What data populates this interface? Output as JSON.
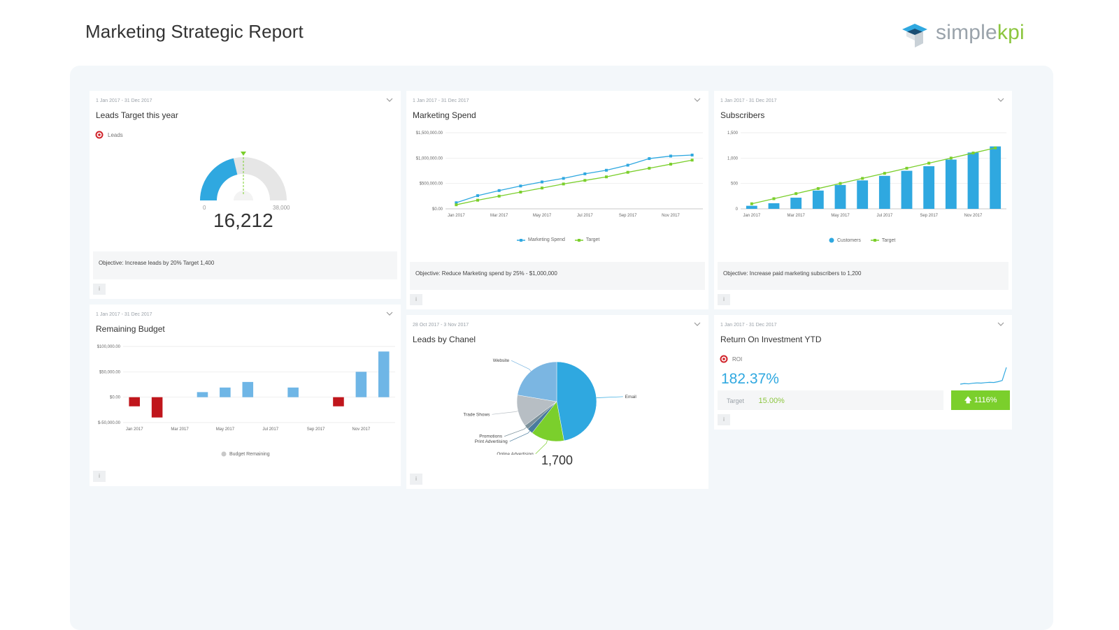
{
  "page": {
    "title": "Marketing Strategic Report"
  },
  "logo": {
    "text_simple": "simple",
    "text_kpi": "kpi"
  },
  "cards": {
    "leads": {
      "date": "1 Jan 2017 - 31 Dec 2017",
      "title": "Leads Target this year",
      "legend": "Leads",
      "gauge_min": "0",
      "gauge_max": "38,000",
      "value": "16,212",
      "objective": "Objective:  Increase leads by 20%  Target 1,400",
      "info": "i"
    },
    "spend": {
      "date": "1 Jan 2017 - 31 Dec 2017",
      "title": "Marketing Spend",
      "objective": "Objective: Reduce Marketing spend by 25% - $1,000,000",
      "legend": [
        "Marketing Spend",
        "Target"
      ],
      "info": "i"
    },
    "subscribers": {
      "date": "1 Jan 2017 - 31 Dec 2017",
      "title": "Subscribers",
      "objective": "Objective: Increase paid marketing subscribers to 1,200",
      "legend": [
        "Customers",
        "Target"
      ],
      "info": "i"
    },
    "budget": {
      "date": "1 Jan 2017 - 31 Dec 2017",
      "title": "Remaining Budget",
      "legend": "Budget Remaining",
      "info": "i"
    },
    "channel": {
      "date": "28 Oct 2017 - 3 Nov 2017",
      "title": "Leads by Chanel",
      "total": "1,700",
      "info": "i"
    },
    "roi": {
      "date": "1 Jan 2017 - 31 Dec 2017",
      "title": "Return On Investment YTD",
      "legend": "ROI",
      "value": "182.37%",
      "target_label": "Target",
      "target_value": "15.00%",
      "change": "1116%",
      "info": "i"
    }
  },
  "colors": {
    "blue": "#2fa8e0",
    "green": "#7bcf2c",
    "red": "#c0161c",
    "light_blue": "#6fb6e6"
  },
  "chart_data": [
    {
      "id": "leads-gauge",
      "type": "gauge",
      "value": 16212,
      "min": 0,
      "max": 38000,
      "target": 19000
    },
    {
      "id": "marketing-spend",
      "type": "line",
      "title": "Marketing Spend",
      "x": [
        "Jan 2017",
        "Feb 2017",
        "Mar 2017",
        "Apr 2017",
        "May 2017",
        "Jun 2017",
        "Jul 2017",
        "Aug 2017",
        "Sep 2017",
        "Oct 2017",
        "Nov 2017",
        "Dec 2017"
      ],
      "x_tick_labels": [
        "Jan 2017",
        "Mar 2017",
        "May 2017",
        "Jul 2017",
        "Sep 2017",
        "Nov 2017"
      ],
      "y_tick_labels": [
        "$0.00",
        "$500,000.00",
        "$1,000,000.00",
        "$1,500,000.00"
      ],
      "ylim": [
        0,
        1500000
      ],
      "series": [
        {
          "name": "Marketing Spend",
          "color": "#2fa8e0",
          "values": [
            120000,
            260000,
            360000,
            450000,
            530000,
            600000,
            690000,
            760000,
            860000,
            990000,
            1040000,
            1060000
          ]
        },
        {
          "name": "Target",
          "color": "#7bcf2c",
          "values": [
            80000,
            170000,
            250000,
            330000,
            410000,
            490000,
            560000,
            630000,
            720000,
            800000,
            880000,
            960000
          ]
        }
      ],
      "grid": true,
      "legend": "bottom"
    },
    {
      "id": "subscribers",
      "type": "bar",
      "title": "Subscribers",
      "x": [
        "Jan 2017",
        "Feb 2017",
        "Mar 2017",
        "Apr 2017",
        "May 2017",
        "Jun 2017",
        "Jul 2017",
        "Aug 2017",
        "Sep 2017",
        "Oct 2017",
        "Nov 2017",
        "Dec 2017"
      ],
      "x_tick_labels": [
        "Jan 2017",
        "Mar 2017",
        "May 2017",
        "Jul 2017",
        "Sep 2017",
        "Nov 2017"
      ],
      "y_tick_labels": [
        "0",
        "500",
        "1,000",
        "1,500"
      ],
      "ylim": [
        0,
        1500
      ],
      "series": [
        {
          "name": "Customers",
          "type": "bar",
          "color": "#2fa8e0",
          "values": [
            60,
            110,
            220,
            360,
            470,
            560,
            650,
            750,
            840,
            970,
            1110,
            1230
          ]
        },
        {
          "name": "Target",
          "type": "line",
          "color": "#7bcf2c",
          "values": [
            100,
            200,
            300,
            400,
            500,
            600,
            700,
            800,
            900,
            1000,
            1100,
            1200
          ]
        }
      ],
      "grid": true,
      "legend": "bottom"
    },
    {
      "id": "remaining-budget",
      "type": "bar",
      "title": "Remaining Budget",
      "x": [
        "Jan 2017",
        "Feb 2017",
        "Mar 2017",
        "Apr 2017",
        "May 2017",
        "Jun 2017",
        "Jul 2017",
        "Aug 2017",
        "Sep 2017",
        "Oct 2017",
        "Nov 2017",
        "Dec 2017"
      ],
      "x_tick_labels": [
        "Jan 2017",
        "Mar 2017",
        "May 2017",
        "Jul 2017",
        "Sep 2017",
        "Nov 2017"
      ],
      "y_tick_labels": [
        "$-50,000.00",
        "$0.00",
        "$50,000.00",
        "$100,000.00"
      ],
      "ylim": [
        -50000,
        100000
      ],
      "series": [
        {
          "name": "Budget Remaining",
          "values": [
            -18000,
            -40000,
            0,
            10000,
            19000,
            30000,
            0,
            19000,
            0,
            -18000,
            50000,
            90000
          ]
        }
      ],
      "positive_color": "#6fb6e6",
      "negative_color": "#c0161c",
      "grid": true,
      "legend": "bottom"
    },
    {
      "id": "leads-by-channel",
      "type": "pie",
      "title": "Leads by Chanel",
      "categories": [
        "Email",
        "Online Advertising",
        "Print Advertising",
        "Promotions",
        "Trade Shows",
        "Website"
      ],
      "values": [
        800,
        230,
        40,
        30,
        220,
        380
      ],
      "colors": [
        "#2fa8e0",
        "#7bcf2c",
        "#4a7b9d",
        "#7a8f99",
        "#b7bec4",
        "#7bb6e2"
      ]
    },
    {
      "id": "roi-sparkline",
      "type": "line",
      "values": [
        1,
        1.2,
        1.1,
        1.3,
        1.4,
        1.35,
        1.5,
        1.6,
        1.55,
        1.8,
        2.2,
        6.5
      ]
    }
  ]
}
